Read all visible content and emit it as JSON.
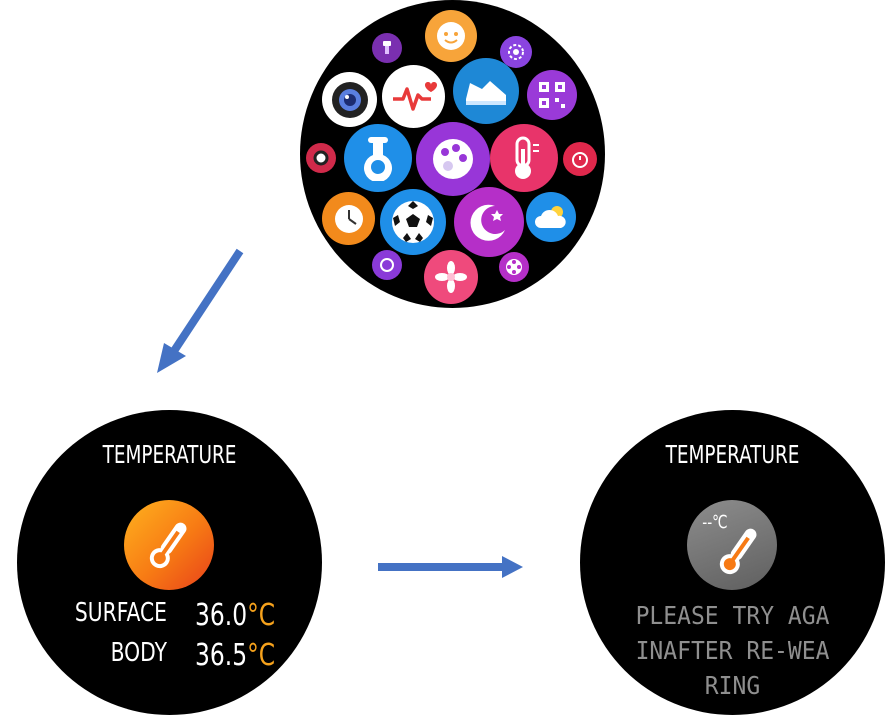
{
  "menu_screen": {
    "apps": [
      {
        "name": "flashlight"
      },
      {
        "name": "emoji"
      },
      {
        "name": "settings"
      },
      {
        "name": "camera"
      },
      {
        "name": "heart-rate"
      },
      {
        "name": "sport"
      },
      {
        "name": "qr-code"
      },
      {
        "name": "remote"
      },
      {
        "name": "lab"
      },
      {
        "name": "theme"
      },
      {
        "name": "temperature"
      },
      {
        "name": "stopwatch"
      },
      {
        "name": "alarm"
      },
      {
        "name": "football"
      },
      {
        "name": "sleep"
      },
      {
        "name": "weather"
      },
      {
        "name": "breath"
      },
      {
        "name": "flower"
      },
      {
        "name": "film"
      }
    ]
  },
  "temperature_screen": {
    "title": "TEMPERATURE",
    "surface_label": "SURFACE",
    "surface_value": "36.0",
    "body_label": "BODY",
    "body_value": "36.5",
    "unit": "°C",
    "accent_color": "#f6a21c"
  },
  "error_screen": {
    "title": "TEMPERATURE",
    "placeholder": "--℃",
    "message": "PLEASE TRY AGA\nINAFTER RE-WEA\nRING"
  },
  "colors": {
    "arrow": "#4472c4",
    "watch_bg": "#000000"
  }
}
